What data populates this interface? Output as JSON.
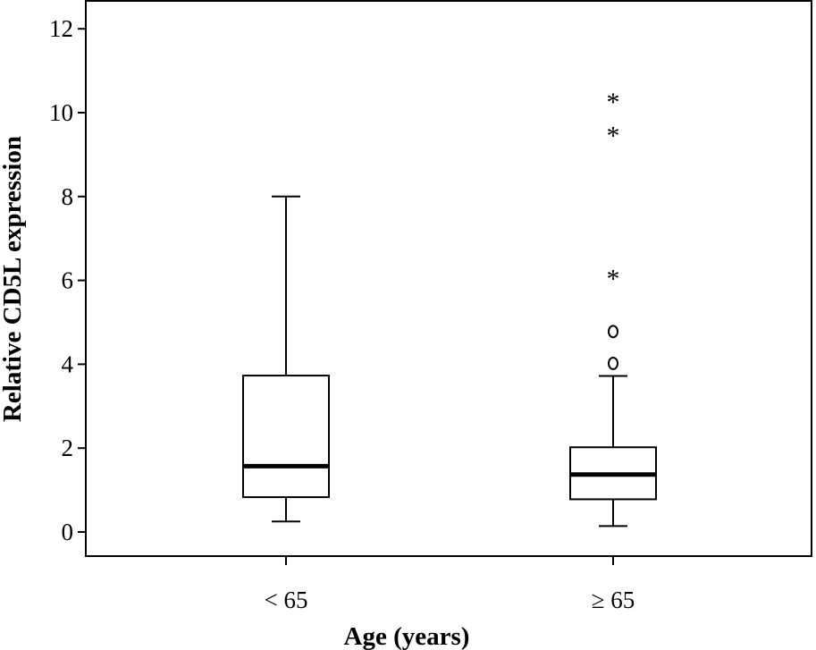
{
  "chart_data": {
    "type": "box",
    "title": "",
    "xlabel": "Age (years)",
    "ylabel": "Relative CD5L expression",
    "ylim": [
      -0.6,
      12.6
    ],
    "yticks": [
      0,
      2,
      4,
      6,
      8,
      10,
      12
    ],
    "ytick_labels": [
      "0",
      "2",
      "4",
      "6",
      "8",
      "10",
      "12"
    ],
    "grid": false,
    "legend": "none",
    "categories": [
      "< 65",
      "≥ 65"
    ],
    "boxes": [
      {
        "category": "< 65",
        "whisker_low": 0.25,
        "q1": 0.83,
        "median": 1.57,
        "q3": 3.73,
        "whisker_high": 8.0,
        "outliers_circle": [],
        "outliers_extreme": []
      },
      {
        "category": "≥ 65",
        "whisker_low": 0.14,
        "q1": 0.78,
        "median": 1.37,
        "q3": 2.02,
        "whisker_high": 3.72,
        "outliers_circle": [
          4.02,
          4.78
        ],
        "outliers_extreme": [
          6.17,
          9.58,
          10.38
        ]
      }
    ]
  }
}
